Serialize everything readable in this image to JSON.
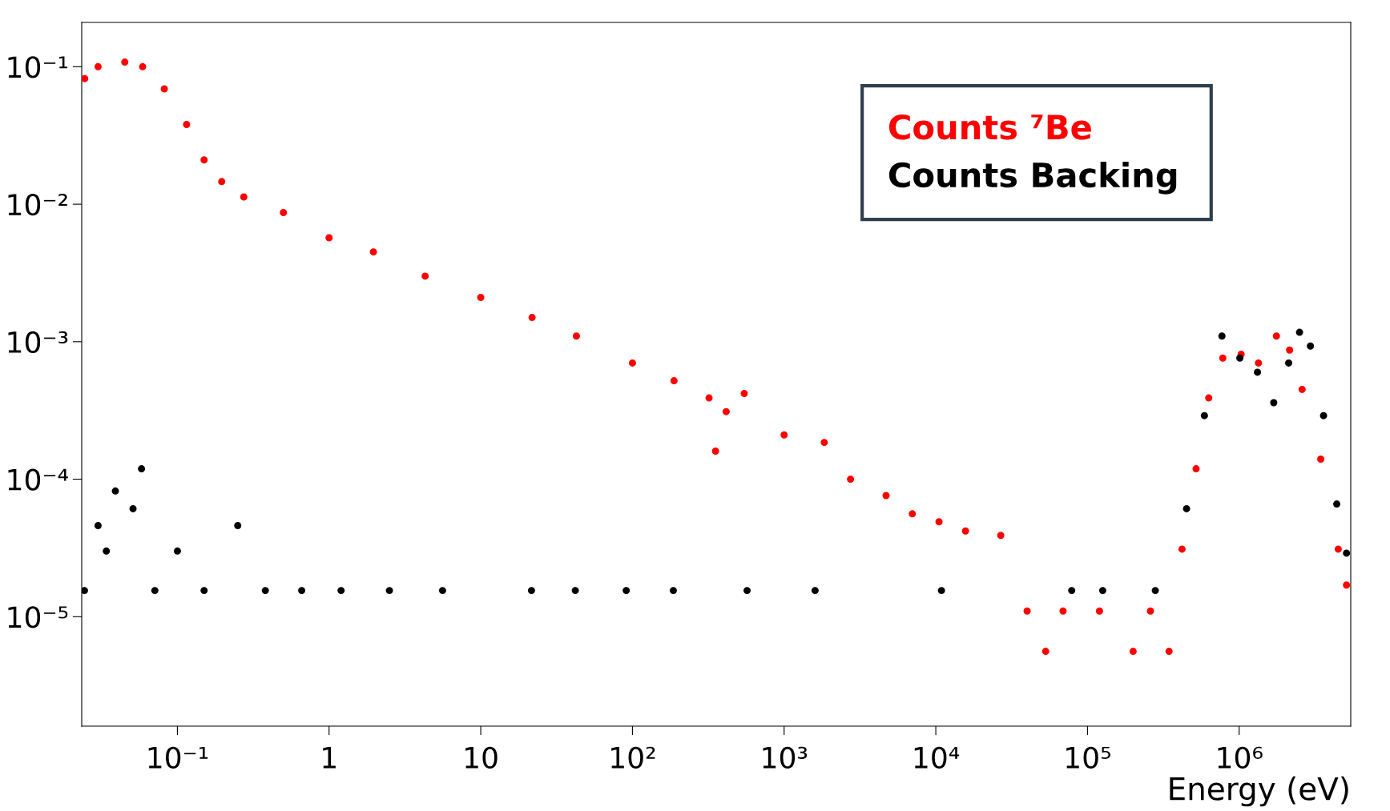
{
  "chart_data": {
    "type": "scatter",
    "xlabel": "Energy (eV)",
    "log": "xy",
    "marker": "circle",
    "grid": false,
    "xlim": [
      0.0234,
      5440000.0
    ],
    "ylim": [
      1.6e-06,
      0.21
    ],
    "xticks": [
      {
        "value": 0.1,
        "label": "10⁻¹"
      },
      1,
      10,
      {
        "value": 100,
        "label": "10²"
      },
      {
        "value": 1000,
        "label": "10³"
      },
      {
        "value": 10000,
        "label": "10⁴"
      },
      {
        "value": 100000,
        "label": "10⁵"
      },
      {
        "value": 1000000,
        "label": "10⁶"
      }
    ],
    "yticks": [
      {
        "value": 1e-05,
        "label": "10⁻⁵"
      },
      {
        "value": 0.0001,
        "label": "10⁻⁴"
      },
      {
        "value": 0.001,
        "label": "10⁻³"
      },
      {
        "value": 0.01,
        "label": "10⁻²"
      },
      {
        "value": 0.1,
        "label": "10⁻¹"
      }
    ],
    "series": [
      {
        "name": "Counts ⁷Be",
        "color": "#ff0000",
        "x": [
          0.0245,
          0.03,
          0.045,
          0.059,
          0.082,
          0.115,
          0.15,
          0.196,
          0.274,
          0.5,
          1,
          1.96,
          4.3,
          10,
          21.8,
          42.7,
          100,
          188,
          320,
          353,
          415,
          546,
          1000,
          1840,
          2740,
          4700,
          7000,
          10500,
          15700,
          26800,
          40000,
          53000,
          69000,
          120000,
          200000,
          260000,
          345000,
          420000,
          520000,
          630000,
          780000,
          1030000,
          1340000,
          1760000,
          2150000,
          2600000,
          3450000,
          4500000,
          5100000
        ],
        "values": [
          0.082,
          0.1,
          0.108,
          0.1,
          0.069,
          0.038,
          0.021,
          0.0146,
          0.0113,
          0.0087,
          0.0057,
          0.0045,
          0.003,
          0.0021,
          0.0015,
          0.0011,
          0.0007,
          0.00052,
          0.00039,
          0.00016,
          0.00031,
          0.00042,
          0.00021,
          0.000185,
          0.0001,
          7.6e-05,
          5.6e-05,
          4.9e-05,
          4.2e-05,
          3.9e-05,
          1.1e-05,
          5.6e-06,
          1.1e-05,
          1.1e-05,
          5.6e-06,
          1.1e-05,
          5.6e-06,
          3.1e-05,
          0.000119,
          0.00039,
          0.00076,
          0.00081,
          0.0007,
          0.0011,
          0.00087,
          0.00045,
          0.00014,
          3.1e-05,
          1.7e-05
        ]
      },
      {
        "name": "Counts Backing",
        "color": "#000000",
        "x": [
          0.0244,
          0.03,
          0.034,
          0.039,
          0.051,
          0.058,
          0.071,
          0.1,
          0.15,
          0.25,
          0.38,
          0.66,
          1.2,
          2.5,
          5.6,
          21.6,
          42,
          91,
          186,
          570,
          1600,
          10900,
          78700,
          126000,
          280000,
          450000,
          590000,
          770000,
          1010000,
          1320000,
          1690000,
          2120000,
          2500000,
          2950000,
          3600000,
          4400000,
          5100000
        ],
        "values": [
          1.55e-05,
          4.6e-05,
          3e-05,
          8.2e-05,
          6.1e-05,
          0.000119,
          1.55e-05,
          3e-05,
          1.55e-05,
          4.6e-05,
          1.55e-05,
          1.55e-05,
          1.55e-05,
          1.55e-05,
          1.55e-05,
          1.55e-05,
          1.55e-05,
          1.55e-05,
          1.55e-05,
          1.55e-05,
          1.55e-05,
          1.55e-05,
          1.55e-05,
          1.55e-05,
          1.55e-05,
          6.1e-05,
          0.00029,
          0.0011,
          0.00076,
          0.0006,
          0.00036,
          0.0007,
          0.00117,
          0.00093,
          0.00029,
          6.6e-05,
          2.9e-05
        ]
      }
    ]
  }
}
